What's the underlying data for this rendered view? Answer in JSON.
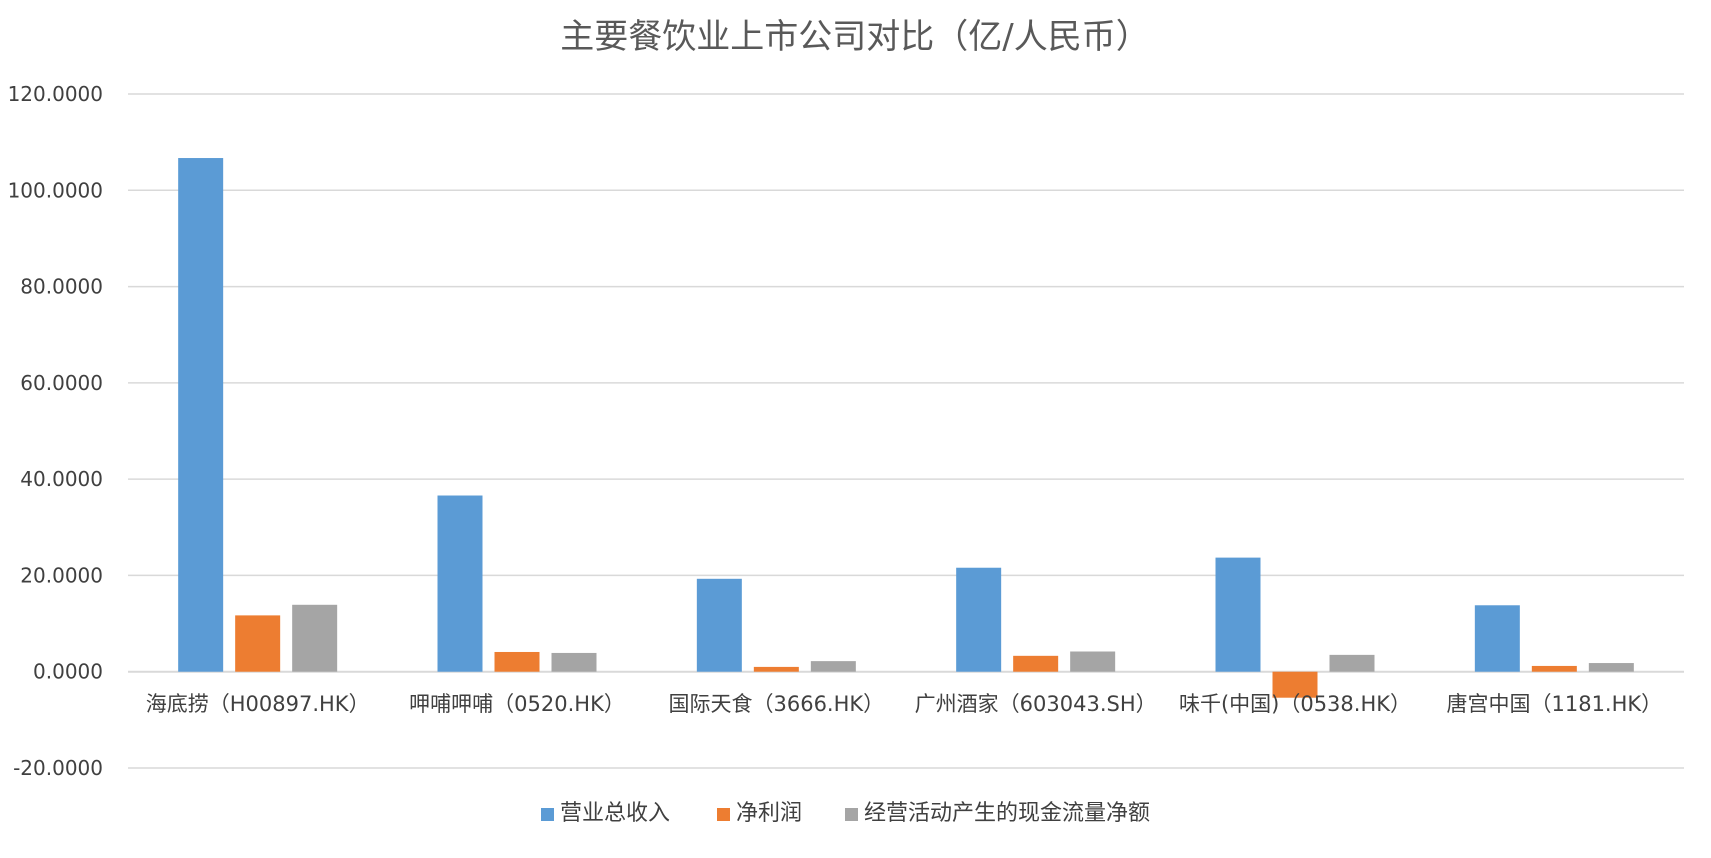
{
  "chart_data": {
    "type": "bar",
    "title": "主要餐饮业上市公司对比（亿/人民币）",
    "xlabel": "",
    "ylabel": "",
    "ylim": [
      -20,
      120
    ],
    "yticks": [
      "120.0000",
      "100.0000",
      "80.0000",
      "60.0000",
      "40.0000",
      "20.0000",
      "0.0000",
      "-20.0000"
    ],
    "ytick_values": [
      120,
      100,
      80,
      60,
      40,
      20,
      0,
      -20
    ],
    "grid": true,
    "legend_position": "bottom",
    "categories": [
      "海底捞（H00897.HK）",
      "呷哺呷哺（0520.HK）",
      "国际天食（3666.HK）",
      "广州酒家（603043.SH）",
      "味千(中国)（0538.HK）",
      "唐宫中国（1181.HK）"
    ],
    "series": [
      {
        "name": "营业总收入",
        "color": "#5b9bd5",
        "values": [
          106.7,
          36.6,
          19.3,
          21.6,
          23.7,
          13.8
        ]
      },
      {
        "name": "净利润",
        "color": "#ed7d31",
        "values": [
          11.7,
          4.1,
          1.0,
          3.3,
          -5.4,
          1.2
        ]
      },
      {
        "name": "经营活动产生的现金流量净额",
        "color": "#a5a5a5",
        "values": [
          13.9,
          3.9,
          2.2,
          4.2,
          3.5,
          1.8
        ]
      }
    ]
  }
}
